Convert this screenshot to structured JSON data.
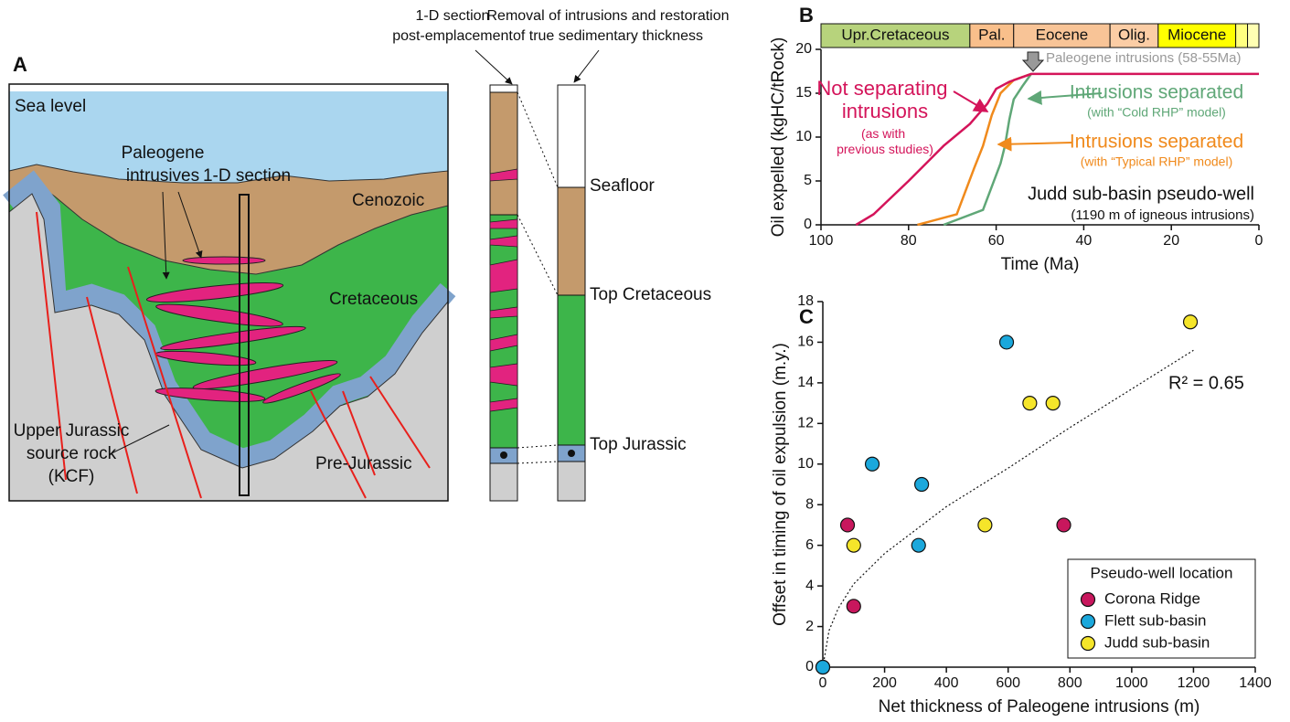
{
  "panel_a": {
    "letter": "A",
    "sea_level": "Sea level",
    "intrusives_label": [
      "Paleogene",
      "intrusives"
    ],
    "section_label": "1-D section",
    "cenozoic": "Cenozoic",
    "cretaceous": "Cretaceous",
    "source_rock": [
      "Upper Jurassic",
      "source rock",
      "(KCF)"
    ],
    "pre_jurassic": "Pre-Jurassic",
    "post_emplacement": [
      "1-D section",
      "post-emplacement"
    ],
    "restoration": [
      "Removal of intrusions and restoration",
      "of true sedimentary thickness"
    ],
    "seafloor": "Seafloor",
    "top_cretaceous": "Top Cretaceous",
    "top_jurassic": "Top Jurassic"
  },
  "chart_data": [
    {
      "type": "line",
      "panel": "B",
      "xlabel": "Time (Ma)",
      "ylabel": "Oil expelled (kgHC/tRock)",
      "xlim": [
        100,
        0
      ],
      "xticks": [
        100,
        80,
        60,
        40,
        20,
        0
      ],
      "ylim": [
        0,
        20
      ],
      "yticks": [
        0,
        5,
        10,
        15,
        20
      ],
      "periods": {
        "labels": [
          "Upr.Cretaceous",
          "Pal.",
          "Eocene",
          "Olig.",
          "Miocene",
          null,
          null
        ],
        "bounds": [
          100,
          66,
          56,
          34,
          23,
          5.3,
          2.6,
          0
        ],
        "colors": [
          "#b7d37c",
          "#f9bf8b",
          "#f8c497",
          "#fbcda5",
          "#ffff00",
          "#ffff80",
          "#ffffb3"
        ]
      },
      "series": [
        {
          "name": "Not separating intrusions",
          "note": "(as with previous studies)",
          "color": "#d4145a",
          "x": [
            92,
            88,
            80,
            72,
            66,
            62,
            60,
            57,
            52,
            0
          ],
          "values": [
            0,
            1.2,
            5,
            9,
            11.5,
            13.8,
            15.5,
            16.3,
            17.2,
            17.2
          ]
        },
        {
          "name": "Intrusions separated",
          "note": "(with “Typical RHP” model)",
          "color": "#f08a1c",
          "x": [
            78,
            69,
            65,
            63,
            61,
            59,
            56,
            52
          ],
          "values": [
            0,
            1.2,
            6.5,
            9,
            12.5,
            15,
            16.5,
            17.2
          ]
        },
        {
          "name": "Intrusions separated",
          "note": "(with “Cold RHP” model)",
          "color": "#5fa777",
          "x": [
            72,
            63,
            59,
            58,
            57,
            56,
            54,
            52
          ],
          "values": [
            0,
            1.7,
            7,
            9,
            12,
            14.3,
            15.8,
            17.2
          ]
        }
      ],
      "annotations": {
        "intrusions": "Paleogene intrusions (58-55Ma)",
        "well": [
          "Judd sub-basin pseudo-well",
          "(1190 m of igneous intrusions)"
        ]
      }
    },
    {
      "type": "scatter",
      "panel": "C",
      "xlabel": "Net thickness of Paleogene intrusions (m)",
      "ylabel": "Offset in timing of oil expulsion (m.y.)",
      "xlim": [
        0,
        1400
      ],
      "xticks": [
        0,
        200,
        400,
        600,
        800,
        1000,
        1200,
        1400
      ],
      "ylim": [
        0,
        18
      ],
      "yticks": [
        0,
        2,
        4,
        6,
        8,
        10,
        12,
        14,
        16,
        18
      ],
      "legend_title": "Pseudo-well location",
      "legend": "lower right",
      "series": [
        {
          "name": "Corona Ridge",
          "color": "#c8175d",
          "x": [
            0,
            80,
            100,
            780
          ],
          "values": [
            0,
            7,
            3,
            7
          ]
        },
        {
          "name": "Flett sub-basin",
          "color": "#1ba8dc",
          "x": [
            0,
            160,
            310,
            320,
            595
          ],
          "values": [
            0,
            10,
            6,
            9,
            16
          ]
        },
        {
          "name": "Judd sub-basin",
          "color": "#f5e52a",
          "x": [
            100,
            525,
            670,
            745,
            1190
          ],
          "values": [
            6,
            7,
            13,
            13,
            17
          ]
        }
      ],
      "trendline": {
        "label": "R² = 0.65",
        "x": [
          0,
          20,
          50,
          100,
          200,
          400,
          600,
          800,
          1000,
          1200
        ],
        "values": [
          0,
          1.8,
          2.9,
          4.1,
          5.6,
          7.9,
          9.8,
          11.8,
          13.7,
          15.6
        ]
      }
    }
  ]
}
